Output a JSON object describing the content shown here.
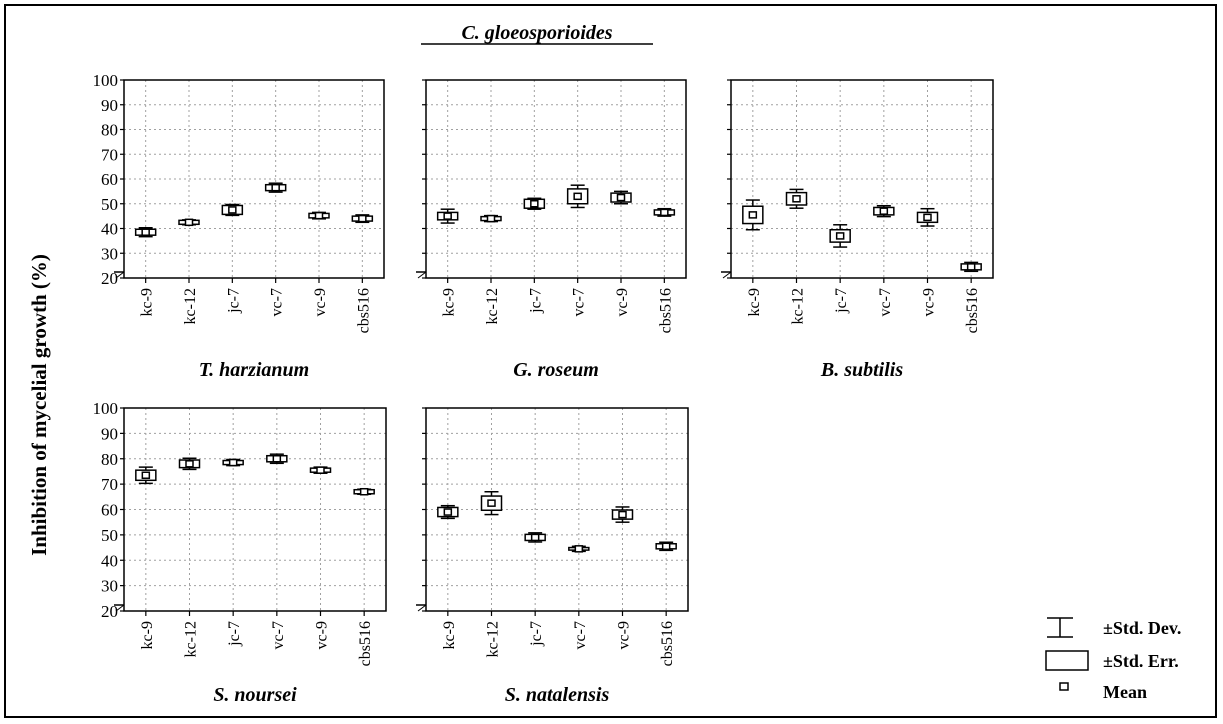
{
  "title": "C. gloeosporioides",
  "ylabel": "Inhibition of mycelial growth (%)",
  "legend": {
    "std_dev": "±Std. Dev.",
    "std_err": "±Std. Err.",
    "mean": "Mean"
  },
  "chart_data": [
    {
      "type": "box",
      "title": "T. harzianum",
      "categories": [
        "kc-9",
        "kc-12",
        "jc-7",
        "vc-7",
        "vc-9",
        "cbs516"
      ],
      "ylim": [
        20,
        100
      ],
      "yticks": [
        20,
        30,
        40,
        50,
        60,
        70,
        80,
        90,
        100
      ],
      "grid": true,
      "series": [
        {
          "name": "Mean",
          "values": [
            38.5,
            42.5,
            47.5,
            56.5,
            45.2,
            44
          ]
        },
        {
          "name": "±Std. Err.",
          "values": [
            1.2,
            0.8,
            1.8,
            1.2,
            0.9,
            1.0
          ]
        },
        {
          "name": "±Std. Dev.",
          "values": [
            1.8,
            1.0,
            2.2,
            1.8,
            1.3,
            1.5
          ]
        }
      ]
    },
    {
      "type": "box",
      "title": "G. roseum",
      "categories": [
        "kc-9",
        "kc-12",
        "jc-7",
        "vc-7",
        "vc-9",
        "cbs516"
      ],
      "ylim": [
        20,
        100
      ],
      "yticks": [
        20,
        30,
        40,
        50,
        60,
        70,
        80,
        90,
        100
      ],
      "grid": true,
      "series": [
        {
          "name": "Mean",
          "values": [
            45,
            44,
            50,
            53,
            52.5,
            46.5
          ]
        },
        {
          "name": "±Std. Err.",
          "values": [
            1.5,
            0.8,
            1.8,
            3.0,
            1.8,
            1.0
          ]
        },
        {
          "name": "±Std. Dev.",
          "values": [
            2.8,
            1.2,
            2.2,
            4.5,
            2.5,
            1.5
          ]
        }
      ]
    },
    {
      "type": "box",
      "title": "B. subtilis",
      "categories": [
        "kc-9",
        "kc-12",
        "jc-7",
        "vc-7",
        "vc-9",
        "cbs516"
      ],
      "ylim": [
        20,
        100
      ],
      "yticks": [
        20,
        30,
        40,
        50,
        60,
        70,
        80,
        90,
        100
      ],
      "grid": true,
      "series": [
        {
          "name": "Mean",
          "values": [
            45.5,
            52,
            37,
            47,
            44.5,
            24.5
          ]
        },
        {
          "name": "±Std. Err.",
          "values": [
            3.5,
            2.5,
            2.5,
            1.5,
            2.0,
            1.2
          ]
        },
        {
          "name": "±Std. Dev.",
          "values": [
            6.0,
            3.8,
            4.5,
            2.2,
            3.5,
            1.8
          ]
        }
      ]
    },
    {
      "type": "box",
      "title": "S. noursei",
      "categories": [
        "kc-9",
        "kc-12",
        "jc-7",
        "vc-7",
        "vc-9",
        "cbs516"
      ],
      "ylim": [
        20,
        100
      ],
      "yticks": [
        20,
        30,
        40,
        50,
        60,
        70,
        80,
        90,
        100
      ],
      "grid": true,
      "series": [
        {
          "name": "Mean",
          "values": [
            73.5,
            78,
            78.5,
            80,
            75.5,
            67
          ]
        },
        {
          "name": "±Std. Err.",
          "values": [
            2.0,
            1.5,
            0.8,
            1.2,
            0.8,
            0.8
          ]
        },
        {
          "name": "±Std. Dev.",
          "values": [
            3.2,
            2.2,
            1.2,
            1.8,
            1.2,
            1.0
          ]
        }
      ]
    },
    {
      "type": "box",
      "title": "S. natalensis",
      "categories": [
        "kc-9",
        "kc-12",
        "jc-7",
        "vc-7",
        "vc-9",
        "cbs516"
      ],
      "ylim": [
        20,
        100
      ],
      "yticks": [
        20,
        30,
        40,
        50,
        60,
        70,
        80,
        90,
        100
      ],
      "grid": true,
      "series": [
        {
          "name": "Mean",
          "values": [
            59,
            62.5,
            49,
            44.5,
            58,
            45.5
          ]
        },
        {
          "name": "±Std. Err.",
          "values": [
            1.8,
            2.8,
            1.2,
            0.5,
            1.8,
            1.0
          ]
        },
        {
          "name": "±Std. Dev.",
          "values": [
            2.5,
            4.5,
            1.8,
            1.0,
            3.0,
            1.6
          ]
        }
      ]
    }
  ]
}
